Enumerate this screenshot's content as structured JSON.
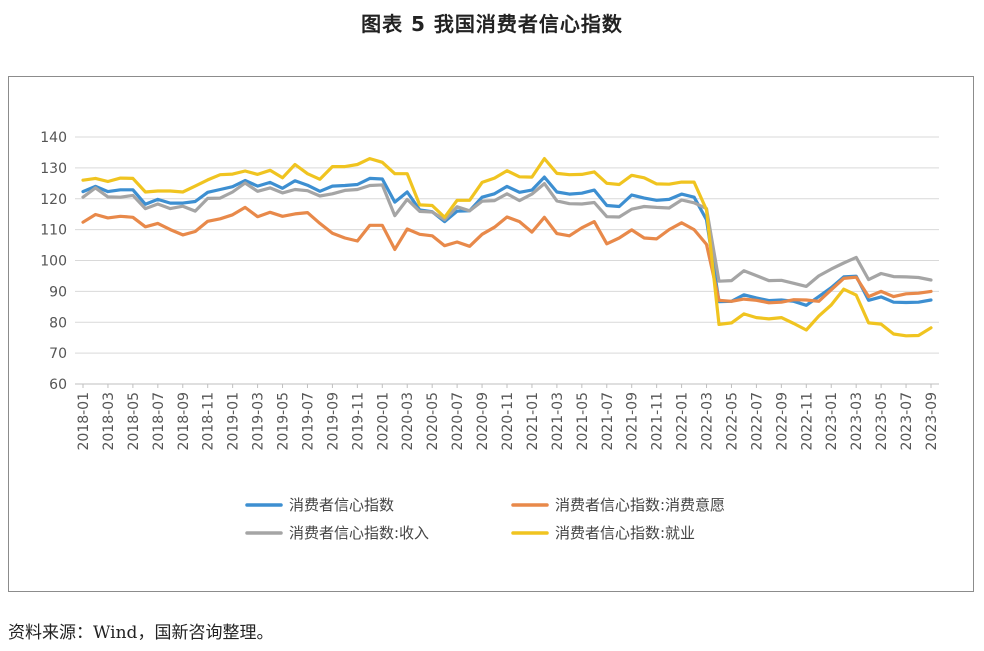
{
  "page": {
    "title": "图表 5  我国消费者信心指数",
    "source": "资料来源：Wind，国新咨询整理。"
  },
  "chart_data": {
    "type": "line",
    "title": "",
    "xlabel": "",
    "ylabel": "",
    "ylim": [
      60,
      140
    ],
    "yticks": [
      60,
      70,
      80,
      90,
      100,
      110,
      120,
      130,
      140
    ],
    "grid": true,
    "legend_position": "bottom",
    "x": [
      "2018-01",
      "2018-02",
      "2018-03",
      "2018-04",
      "2018-05",
      "2018-06",
      "2018-07",
      "2018-08",
      "2018-09",
      "2018-10",
      "2018-11",
      "2018-12",
      "2019-01",
      "2019-02",
      "2019-03",
      "2019-04",
      "2019-05",
      "2019-06",
      "2019-07",
      "2019-08",
      "2019-09",
      "2019-10",
      "2019-11",
      "2019-12",
      "2020-01",
      "2020-02",
      "2020-03",
      "2020-04",
      "2020-05",
      "2020-06",
      "2020-07",
      "2020-08",
      "2020-09",
      "2020-10",
      "2020-11",
      "2020-12",
      "2021-01",
      "2021-02",
      "2021-03",
      "2021-04",
      "2021-05",
      "2021-06",
      "2021-07",
      "2021-08",
      "2021-09",
      "2021-10",
      "2021-11",
      "2021-12",
      "2022-01",
      "2022-02",
      "2022-03",
      "2022-04",
      "2022-05",
      "2022-06",
      "2022-07",
      "2022-08",
      "2022-09",
      "2022-10",
      "2022-11",
      "2022-12",
      "2023-01",
      "2023-02",
      "2023-03",
      "2023-04",
      "2023-05",
      "2023-06",
      "2023-07",
      "2023-08",
      "2023-09"
    ],
    "xtick_labels": [
      "2018-01",
      "2018-03",
      "2018-05",
      "2018-07",
      "2018-09",
      "2018-11",
      "2019-01",
      "2019-03",
      "2019-05",
      "2019-07",
      "2019-09",
      "2019-11",
      "2020-01",
      "2020-03",
      "2020-05",
      "2020-07",
      "2020-09",
      "2020-11",
      "2021-01",
      "2021-03",
      "2021-05",
      "2021-07",
      "2021-09",
      "2021-11",
      "2022-01",
      "2022-03",
      "2022-05",
      "2022-07",
      "2022-09",
      "2022-11",
      "2023-01",
      "2023-03",
      "2023-05",
      "2023-07",
      "2023-09"
    ],
    "series": [
      {
        "name": "消费者信心指数",
        "color": "#3d8fd1",
        "values": [
          122.3,
          124.0,
          122.3,
          122.9,
          122.9,
          118.2,
          119.8,
          118.6,
          118.6,
          119.1,
          122.1,
          123.0,
          123.9,
          125.9,
          124.1,
          125.3,
          123.4,
          125.8,
          124.4,
          122.4,
          124.1,
          124.3,
          124.6,
          126.6,
          126.4,
          118.9,
          122.2,
          116.4,
          115.8,
          112.6,
          116.0,
          116.1,
          120.5,
          121.6,
          124.0,
          122.1,
          122.8,
          127.0,
          122.2,
          121.5,
          121.8,
          122.8,
          117.8,
          117.5,
          121.2,
          120.2,
          119.5,
          119.8,
          121.5,
          120.5,
          113.2,
          86.7,
          86.8,
          88.9,
          87.9,
          87.0,
          87.2,
          86.8,
          85.5,
          88.3,
          91.2,
          94.7,
          94.9,
          87.1,
          88.2,
          86.5,
          86.4,
          86.5,
          87.2
        ]
      },
      {
        "name": "消费者信心指数:消费意愿",
        "color": "#e8894a",
        "values": [
          112.4,
          114.9,
          113.8,
          114.3,
          114.0,
          110.9,
          112.0,
          110.0,
          108.3,
          109.4,
          112.7,
          113.5,
          114.8,
          117.2,
          114.2,
          115.6,
          114.3,
          115.1,
          115.5,
          112.0,
          108.8,
          107.3,
          106.3,
          111.4,
          111.4,
          103.6,
          110.2,
          108.5,
          108.0,
          104.8,
          106.0,
          104.6,
          108.5,
          110.8,
          114.1,
          112.6,
          109.2,
          114.0,
          108.7,
          108.0,
          110.6,
          112.6,
          105.4,
          107.3,
          109.9,
          107.3,
          107.0,
          110.0,
          112.2,
          110.0,
          105.2,
          87.1,
          86.8,
          87.5,
          87.1,
          86.3,
          86.5,
          87.3,
          87.2,
          86.8,
          90.5,
          94.2,
          94.6,
          88.3,
          90.0,
          88.3,
          89.2,
          89.4,
          90.0
        ]
      },
      {
        "name": "消费者信心指数:收入",
        "color": "#a5a5a5",
        "values": [
          120.5,
          123.5,
          120.6,
          120.5,
          121.1,
          116.8,
          118.3,
          116.8,
          117.6,
          116.0,
          120.1,
          120.2,
          122.2,
          125.1,
          122.4,
          123.5,
          121.9,
          123.0,
          122.6,
          120.9,
          121.6,
          122.7,
          123.0,
          124.3,
          124.5,
          114.5,
          119.8,
          115.9,
          115.7,
          113.2,
          117.4,
          116.1,
          119.2,
          119.4,
          121.6,
          119.4,
          121.5,
          124.9,
          119.3,
          118.4,
          118.3,
          118.8,
          114.2,
          114.1,
          116.6,
          117.5,
          117.2,
          117.0,
          119.6,
          118.7,
          116.8,
          93.3,
          93.5,
          96.7,
          95.1,
          93.5,
          93.6,
          92.6,
          91.6,
          95.0,
          97.2,
          99.2,
          101.0,
          93.8,
          95.8,
          94.8,
          94.7,
          94.5,
          93.7
        ]
      },
      {
        "name": "消费者信心指数:就业",
        "color": "#f0c420",
        "values": [
          126.0,
          126.6,
          125.6,
          126.7,
          126.6,
          122.2,
          122.5,
          122.5,
          122.2,
          124.1,
          126.1,
          127.8,
          128.0,
          129.0,
          127.9,
          129.2,
          126.8,
          131.1,
          128.1,
          126.3,
          130.4,
          130.4,
          131.1,
          133.0,
          131.8,
          128.1,
          128.1,
          118.0,
          117.8,
          114.0,
          119.5,
          119.5,
          125.3,
          126.7,
          129.1,
          127.1,
          127.0,
          133.0,
          128.2,
          127.8,
          127.9,
          128.7,
          125.0,
          124.6,
          127.6,
          126.8,
          124.8,
          124.7,
          125.4,
          125.4,
          116.4,
          79.3,
          79.8,
          82.7,
          81.5,
          81.1,
          81.5,
          79.6,
          77.5,
          82.0,
          85.6,
          90.7,
          88.8,
          79.8,
          79.4,
          76.2,
          75.6,
          75.7,
          78.2
        ]
      }
    ]
  }
}
